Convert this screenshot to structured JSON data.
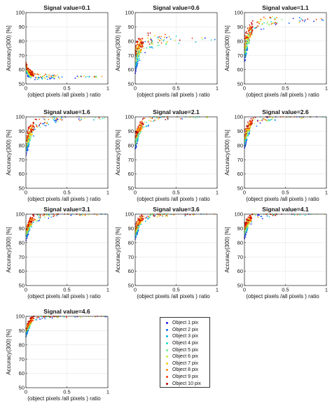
{
  "figure": {
    "ylabel": "Accuracy(300) [%]",
    "xlabel": "(object pixels / all pixels) ratio",
    "xlabel_parts": [
      "(",
      "object pixels",
      "/all pixels",
      ") ratio"
    ]
  },
  "legend": {
    "entries": [
      {
        "label": "Object 1 pix",
        "color": "#1a1aff"
      },
      {
        "label": "Object 2 pix",
        "color": "#0a6cf0"
      },
      {
        "label": "Object 3 pix",
        "color": "#00b4e6"
      },
      {
        "label": "Object 4 pix",
        "color": "#1ee0c8"
      },
      {
        "label": "Object 5 pix",
        "color": "#6ef08c"
      },
      {
        "label": "Object 6 pix",
        "color": "#c4f038"
      },
      {
        "label": "Object 7 pix",
        "color": "#f5d000"
      },
      {
        "label": "Object 8 pix",
        "color": "#ff8a00"
      },
      {
        "label": "Object 9 pix",
        "color": "#ff3a00"
      },
      {
        "label": "Object 10 pix",
        "color": "#c00000"
      }
    ]
  },
  "chart_data": [
    {
      "type": "scatter",
      "title": "Signal value=0.1",
      "xlim": [
        0,
        1
      ],
      "ylim": [
        50,
        100
      ],
      "xticks": [
        "0",
        "0.5",
        "1"
      ],
      "yticks": [
        "50",
        "60",
        "70",
        "80",
        "90",
        "100"
      ],
      "ylabel": "Accuracy(300) [%]",
      "xlabel": "(object pixels / all pixels) ratio",
      "trend": {
        "start": 62,
        "plateau": 55,
        "decay": 25,
        "spread": 3
      }
    },
    {
      "type": "scatter",
      "title": "Signal value=0.6",
      "xlim": [
        0,
        1
      ],
      "ylim": [
        50,
        100
      ],
      "xticks": [
        "0",
        "0.5",
        "1"
      ],
      "yticks": [
        "50",
        "60",
        "70",
        "80",
        "90",
        "100"
      ],
      "ylabel": "Accuracy(300) [%]",
      "xlabel": "(object pixels / all pixels) ratio",
      "trend": {
        "start": 68,
        "plateau": 81,
        "decay": 12,
        "spread": 8
      }
    },
    {
      "type": "scatter",
      "title": "Signal value=1.1",
      "xlim": [
        0,
        1
      ],
      "ylim": [
        50,
        100
      ],
      "xticks": [
        "0",
        "0.5",
        "1"
      ],
      "yticks": [
        "50",
        "60",
        "70",
        "80",
        "90",
        "100"
      ],
      "ylabel": "Accuracy(300) [%]",
      "xlabel": "(object pixels / all pixels) ratio",
      "trend": {
        "start": 74,
        "plateau": 95,
        "decay": 10,
        "spread": 7
      }
    },
    {
      "type": "scatter",
      "title": "Signal value=1.6",
      "xlim": [
        0,
        1
      ],
      "ylim": [
        50,
        100
      ],
      "xticks": [
        "0",
        "0.5",
        "1"
      ],
      "yticks": [
        "50",
        "60",
        "70",
        "80",
        "90",
        "100"
      ],
      "ylabel": "Accuracy(300) [%]",
      "xlabel": "(object pixels / all pixels) ratio",
      "trend": {
        "start": 80,
        "plateau": 99,
        "decay": 10,
        "spread": 6
      }
    },
    {
      "type": "scatter",
      "title": "Signal value=2.1",
      "xlim": [
        0,
        1
      ],
      "ylim": [
        50,
        100
      ],
      "xticks": [
        "0",
        "0.5",
        "1"
      ],
      "yticks": [
        "50",
        "60",
        "70",
        "80",
        "90",
        "100"
      ],
      "ylabel": "Accuracy(300) [%]",
      "xlabel": "(object pixels / all pixels) ratio",
      "trend": {
        "start": 83,
        "plateau": 100,
        "decay": 11,
        "spread": 5
      }
    },
    {
      "type": "scatter",
      "title": "Signal value=2.6",
      "xlim": [
        0,
        1
      ],
      "ylim": [
        50,
        100
      ],
      "xticks": [
        "0",
        "0.5",
        "1"
      ],
      "yticks": [
        "50",
        "60",
        "70",
        "80",
        "90",
        "100"
      ],
      "ylabel": "Accuracy(300) [%]",
      "xlabel": "(object pixels / all pixels) ratio",
      "trend": {
        "start": 84,
        "plateau": 100,
        "decay": 12,
        "spread": 5
      }
    },
    {
      "type": "scatter",
      "title": "Signal value=3.1",
      "xlim": [
        0,
        1
      ],
      "ylim": [
        50,
        100
      ],
      "xticks": [
        "0",
        "0.5",
        "1"
      ],
      "yticks": [
        "50",
        "60",
        "70",
        "80",
        "90",
        "100"
      ],
      "ylabel": "Accuracy(300) [%]",
      "xlabel": "(object pixels / all pixels) ratio",
      "trend": {
        "start": 86,
        "plateau": 100,
        "decay": 13,
        "spread": 4
      }
    },
    {
      "type": "scatter",
      "title": "Signal value=3.6",
      "xlim": [
        0,
        1
      ],
      "ylim": [
        50,
        100
      ],
      "xticks": [
        "0",
        "0.5",
        "1"
      ],
      "yticks": [
        "50",
        "60",
        "70",
        "80",
        "90",
        "100"
      ],
      "ylabel": "Accuracy(300) [%]",
      "xlabel": "(object pixels / all pixels) ratio",
      "trend": {
        "start": 87,
        "plateau": 100,
        "decay": 14,
        "spread": 4
      }
    },
    {
      "type": "scatter",
      "title": "Signal value=4.1",
      "xlim": [
        0,
        1
      ],
      "ylim": [
        50,
        100
      ],
      "xticks": [
        "0",
        "0.5",
        "1"
      ],
      "yticks": [
        "50",
        "60",
        "70",
        "80",
        "90",
        "100"
      ],
      "ylabel": "Accuracy(300) [%]",
      "xlabel": "(object pixels / all pixels) ratio",
      "trend": {
        "start": 88,
        "plateau": 100,
        "decay": 15,
        "spread": 4
      }
    },
    {
      "type": "scatter",
      "title": "Signal value=4.6",
      "xlim": [
        0,
        1
      ],
      "ylim": [
        50,
        100
      ],
      "xticks": [
        "0",
        "0.5",
        "1"
      ],
      "yticks": [
        "50",
        "60",
        "70",
        "80",
        "90",
        "100"
      ],
      "ylabel": "Accuracy(300) [%]",
      "xlabel": "(object pixels / all pixels) ratio",
      "trend": {
        "start": 89,
        "plateau": 100,
        "decay": 16,
        "spread": 3
      }
    }
  ]
}
